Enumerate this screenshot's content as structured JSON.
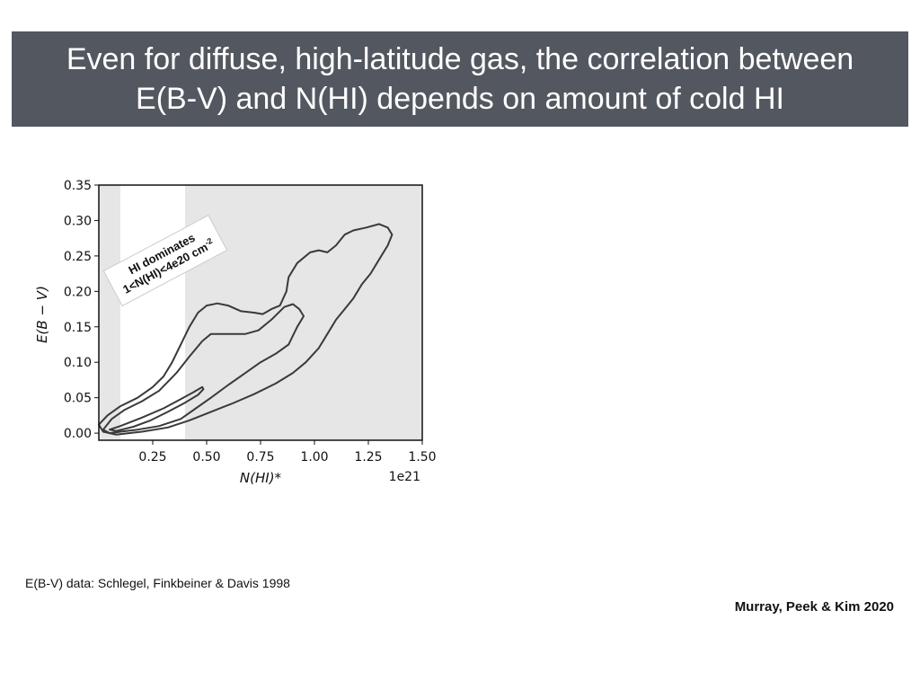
{
  "slide": {
    "title_line1": "Even for diffuse, high-latitude gas, the correlation between",
    "title_line2": "E(B-V) and N(HI) depends on amount of cold HI",
    "credit": "E(B-V) data: Schlegel, Finkbeiner & Davis 1998",
    "citation": "Murray, Peek & Kim 2020"
  },
  "colors": {
    "banner": "#535760",
    "plot_shade": "#e6e6e6",
    "contour": "#3a3a3a"
  },
  "chart_data": {
    "type": "contour",
    "title": "",
    "xlabel": "N(HI)*",
    "ylabel": "E(B − V)",
    "x_offset_label": "1e21",
    "xlim": [
      0.0,
      1.5
    ],
    "ylim": [
      -0.01,
      0.35
    ],
    "xticks": [
      0.25,
      0.5,
      0.75,
      1.0,
      1.25,
      1.5
    ],
    "xtick_labels": [
      "0.25",
      "0.50",
      "0.75",
      "1.00",
      "1.25",
      "1.50"
    ],
    "yticks": [
      0.0,
      0.05,
      0.1,
      0.15,
      0.2,
      0.25,
      0.3,
      0.35
    ],
    "ytick_labels": [
      "0.00",
      "0.05",
      "0.10",
      "0.15",
      "0.20",
      "0.25",
      "0.30",
      "0.35"
    ],
    "grid": false,
    "shaded_x_ranges": [
      [
        0.0,
        0.1
      ],
      [
        0.4,
        1.5
      ]
    ],
    "annotation": {
      "line1": "HI dominates",
      "line2": "1<N(HI)<4e20 cm",
      "superscript": "-2"
    },
    "contours": [
      {
        "level": "inner",
        "points": [
          [
            0.05,
            0.005
          ],
          [
            0.1,
            0.01
          ],
          [
            0.2,
            0.022
          ],
          [
            0.3,
            0.035
          ],
          [
            0.38,
            0.048
          ],
          [
            0.44,
            0.058
          ],
          [
            0.48,
            0.065
          ],
          [
            0.485,
            0.062
          ],
          [
            0.46,
            0.054
          ],
          [
            0.4,
            0.043
          ],
          [
            0.32,
            0.03
          ],
          [
            0.24,
            0.018
          ],
          [
            0.16,
            0.009
          ],
          [
            0.08,
            0.003
          ]
        ]
      },
      {
        "level": "middle",
        "points": [
          [
            0.02,
            0.005
          ],
          [
            0.06,
            0.02
          ],
          [
            0.12,
            0.033
          ],
          [
            0.2,
            0.045
          ],
          [
            0.28,
            0.06
          ],
          [
            0.36,
            0.085
          ],
          [
            0.42,
            0.108
          ],
          [
            0.48,
            0.13
          ],
          [
            0.52,
            0.14
          ],
          [
            0.6,
            0.14
          ],
          [
            0.68,
            0.14
          ],
          [
            0.74,
            0.145
          ],
          [
            0.8,
            0.16
          ],
          [
            0.86,
            0.178
          ],
          [
            0.9,
            0.182
          ],
          [
            0.93,
            0.175
          ],
          [
            0.95,
            0.165
          ],
          [
            0.92,
            0.15
          ],
          [
            0.88,
            0.125
          ],
          [
            0.82,
            0.112
          ],
          [
            0.75,
            0.1
          ],
          [
            0.68,
            0.085
          ],
          [
            0.6,
            0.068
          ],
          [
            0.52,
            0.05
          ],
          [
            0.45,
            0.035
          ],
          [
            0.38,
            0.02
          ],
          [
            0.28,
            0.01
          ],
          [
            0.18,
            0.005
          ],
          [
            0.1,
            0.002
          ],
          [
            0.05,
            0.0
          ]
        ]
      },
      {
        "level": "outer",
        "points": [
          [
            0.0,
            0.012
          ],
          [
            0.04,
            0.025
          ],
          [
            0.1,
            0.038
          ],
          [
            0.18,
            0.05
          ],
          [
            0.25,
            0.065
          ],
          [
            0.3,
            0.08
          ],
          [
            0.34,
            0.1
          ],
          [
            0.38,
            0.125
          ],
          [
            0.42,
            0.15
          ],
          [
            0.46,
            0.17
          ],
          [
            0.5,
            0.18
          ],
          [
            0.55,
            0.183
          ],
          [
            0.6,
            0.18
          ],
          [
            0.66,
            0.172
          ],
          [
            0.72,
            0.17
          ],
          [
            0.76,
            0.168
          ],
          [
            0.8,
            0.175
          ],
          [
            0.84,
            0.18
          ],
          [
            0.87,
            0.2
          ],
          [
            0.88,
            0.22
          ],
          [
            0.92,
            0.24
          ],
          [
            0.98,
            0.255
          ],
          [
            1.02,
            0.258
          ],
          [
            1.06,
            0.255
          ],
          [
            1.1,
            0.265
          ],
          [
            1.14,
            0.28
          ],
          [
            1.18,
            0.286
          ],
          [
            1.24,
            0.29
          ],
          [
            1.3,
            0.295
          ],
          [
            1.34,
            0.29
          ],
          [
            1.36,
            0.28
          ],
          [
            1.34,
            0.265
          ],
          [
            1.3,
            0.245
          ],
          [
            1.26,
            0.225
          ],
          [
            1.22,
            0.21
          ],
          [
            1.18,
            0.19
          ],
          [
            1.14,
            0.175
          ],
          [
            1.1,
            0.16
          ],
          [
            1.06,
            0.14
          ],
          [
            1.02,
            0.12
          ],
          [
            0.96,
            0.1
          ],
          [
            0.9,
            0.085
          ],
          [
            0.82,
            0.07
          ],
          [
            0.72,
            0.055
          ],
          [
            0.62,
            0.042
          ],
          [
            0.52,
            0.03
          ],
          [
            0.42,
            0.018
          ],
          [
            0.32,
            0.008
          ],
          [
            0.2,
            0.002
          ],
          [
            0.08,
            -0.002
          ],
          [
            0.02,
            0.002
          ]
        ]
      }
    ]
  }
}
